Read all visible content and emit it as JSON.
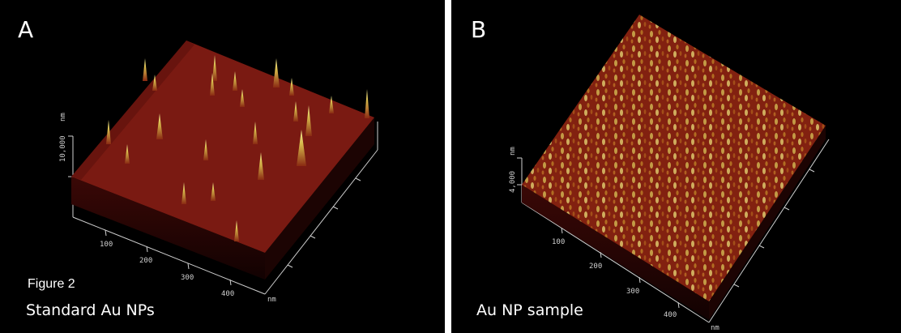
{
  "panels": [
    {
      "letter": "A",
      "figure_label": "Figure 2",
      "caption": "Standard Au NPs",
      "z_label": "10,000",
      "z_unit": "nm",
      "x_ticks": [
        "100",
        "200",
        "300",
        "400"
      ],
      "x_unit": "nm"
    },
    {
      "letter": "B",
      "caption": "Au NP sample",
      "z_label": "4,000",
      "z_unit": "nm",
      "x_ticks": [
        "100",
        "200",
        "300",
        "400"
      ],
      "x_unit": "nm"
    }
  ],
  "colors": {
    "surface": "#7a1a12",
    "surface_dark": "#4e0c08",
    "peak": "#e9e07a",
    "background": "#000000"
  }
}
